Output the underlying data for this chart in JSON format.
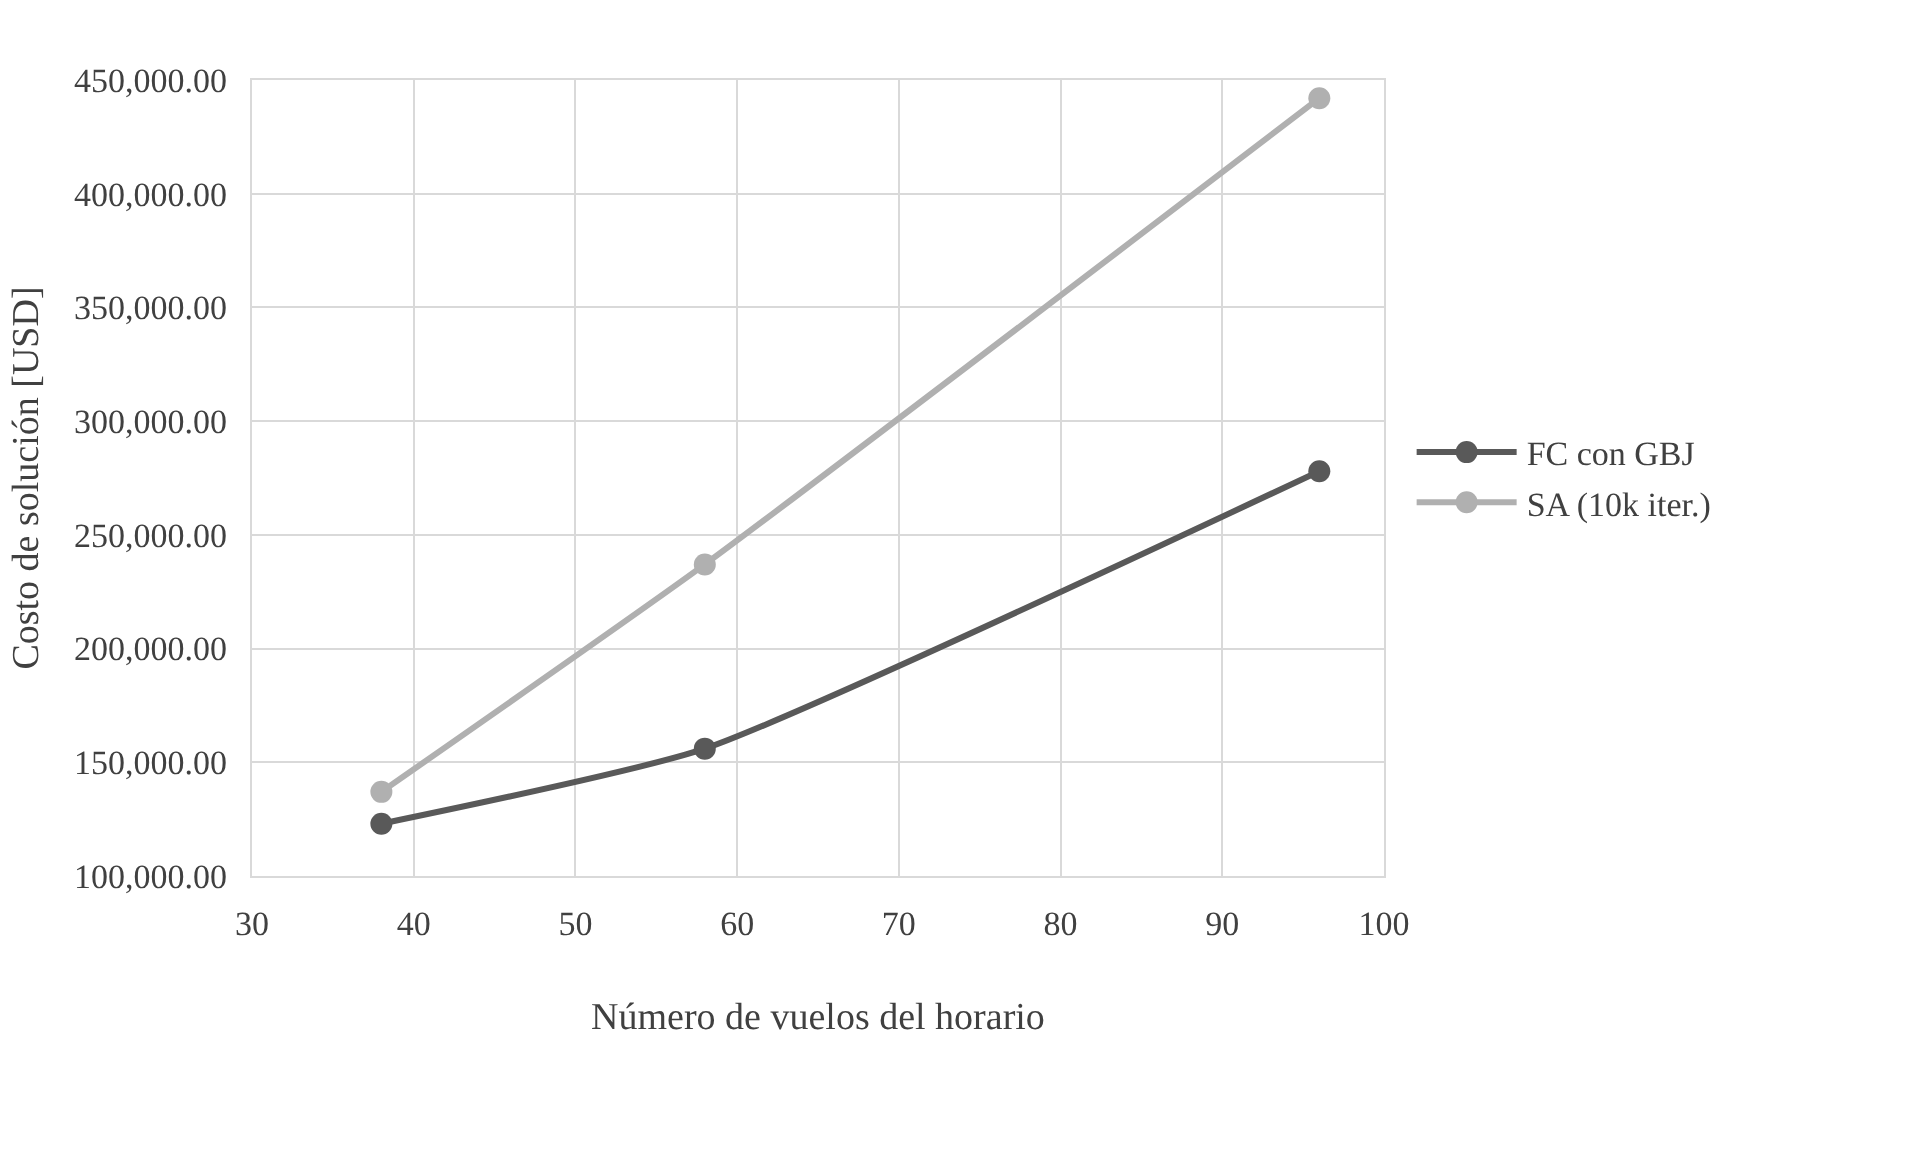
{
  "chart_data": {
    "type": "line",
    "xlabel": "Número de vuelos del horario",
    "ylabel": "Costo de solución [USD]",
    "x": [
      38,
      58,
      96
    ],
    "series": [
      {
        "name": "FC con GBJ",
        "color": "#595959",
        "values": [
          123000,
          156000,
          278000
        ]
      },
      {
        "name": "SA (10k iter.)",
        "color": "#b0b0b0",
        "values": [
          137000,
          237000,
          442000
        ]
      }
    ],
    "xlim": [
      30,
      100
    ],
    "xticks": [
      30,
      40,
      50,
      60,
      70,
      80,
      90,
      100
    ],
    "ylim": [
      100000,
      450000
    ],
    "yticks": [
      {
        "value": 100000,
        "label": "100,000.00"
      },
      {
        "value": 150000,
        "label": "150,000.00"
      },
      {
        "value": 200000,
        "label": "200,000.00"
      },
      {
        "value": 250000,
        "label": "250,000.00"
      },
      {
        "value": 300000,
        "label": "300,000.00"
      },
      {
        "value": 350000,
        "label": "350,000.00"
      },
      {
        "value": 400000,
        "label": "400,000.00"
      },
      {
        "value": 450000,
        "label": "450,000.00"
      }
    ],
    "grid": true,
    "legend": "right",
    "marker": "circle",
    "line_style": "solid"
  }
}
